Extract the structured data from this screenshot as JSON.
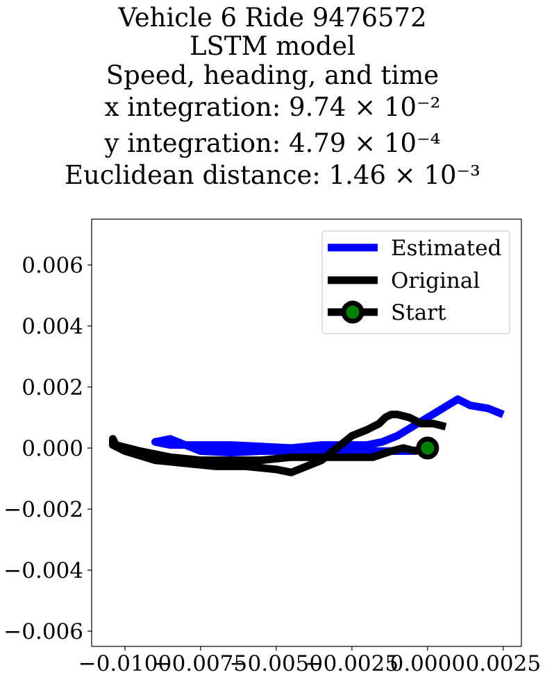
{
  "title_lines": [
    "Vehicle 6 Ride 9476572",
    "LSTM model",
    "Speed, heading, and time",
    "x integration: 9.74 × 10⁻²",
    "y integration: 4.79 × 10⁻⁴",
    "Euclidean distance: 1.46 × 10⁻³"
  ],
  "chart_data": {
    "type": "line",
    "title": "Vehicle 6 Ride 9476572 / LSTM model / Speed, heading, and time / x integration: 9.74 × 10⁻² / y integration: 4.79 × 10⁻⁴ / Euclidean distance: 1.46 × 10⁻³",
    "xlabel": "",
    "ylabel": "",
    "xlim": [
      -0.0111,
      0.0031
    ],
    "ylim": [
      -0.0065,
      0.0075
    ],
    "xticks": [
      "−0.0100",
      "−0.0075",
      "−0.0050",
      "−0.0025",
      "0.0000",
      "0.0025"
    ],
    "xtick_values": [
      -0.01,
      -0.0075,
      -0.005,
      -0.0025,
      0.0,
      0.0025
    ],
    "yticks": [
      "0.006",
      "0.004",
      "0.002",
      "0.000",
      "−0.002",
      "−0.004",
      "−0.006"
    ],
    "ytick_values": [
      0.006,
      0.004,
      0.002,
      0.0,
      -0.002,
      -0.004,
      -0.006
    ],
    "grid": false,
    "legend_position": "top-right",
    "series": [
      {
        "name": "Estimated",
        "color": "#0000ff",
        "points": [
          [
            0.0,
            0.0
          ],
          [
            -0.0005,
            -0.0001
          ],
          [
            -0.001,
            -0.0001
          ],
          [
            -0.0015,
            -0.0001
          ],
          [
            -0.002,
            -0.0001
          ],
          [
            -0.0025,
            -0.0001
          ],
          [
            -0.003,
            -5e-05
          ],
          [
            -0.0035,
            -0.0001
          ],
          [
            -0.0045,
            -0.0001
          ],
          [
            -0.0055,
            -0.0001
          ],
          [
            -0.0065,
            -0.00015
          ],
          [
            -0.0075,
            -0.0001
          ],
          [
            -0.008,
            0.0001
          ],
          [
            -0.0085,
            0.0003
          ],
          [
            -0.009,
            0.0002
          ],
          [
            -0.0085,
            0.0001
          ],
          [
            -0.0075,
            0.0001
          ],
          [
            -0.0065,
            0.0001
          ],
          [
            -0.0055,
            5e-05
          ],
          [
            -0.0045,
            0.0
          ],
          [
            -0.0035,
            0.0001
          ],
          [
            -0.0025,
            0.0001
          ],
          [
            -0.002,
            0.0001
          ],
          [
            -0.0015,
            0.0002
          ],
          [
            -0.001,
            0.0004
          ],
          [
            -0.0005,
            0.0007
          ],
          [
            0.0,
            0.001
          ],
          [
            0.0005,
            0.0013
          ],
          [
            0.001,
            0.0016
          ],
          [
            0.0014,
            0.0014
          ],
          [
            0.002,
            0.0013
          ],
          [
            0.0025,
            0.0011
          ]
        ]
      },
      {
        "name": "Original",
        "color": "#000000",
        "points": [
          [
            0.0006,
            0.0007
          ],
          [
            0.0002,
            0.0008
          ],
          [
            -0.0002,
            0.0008
          ],
          [
            -0.0006,
            0.001
          ],
          [
            -0.001,
            0.0011
          ],
          [
            -0.0012,
            0.0011
          ],
          [
            -0.0014,
            0.001
          ],
          [
            -0.0016,
            0.0008
          ],
          [
            -0.002,
            0.0006
          ],
          [
            -0.0025,
            0.0004
          ],
          [
            -0.003,
            0.0
          ],
          [
            -0.0035,
            -0.0004
          ],
          [
            -0.004,
            -0.0006
          ],
          [
            -0.0045,
            -0.0008
          ],
          [
            -0.005,
            -0.0007
          ],
          [
            -0.006,
            -0.0006
          ],
          [
            -0.007,
            -0.0006
          ],
          [
            -0.008,
            -0.0005
          ],
          [
            -0.009,
            -0.0004
          ],
          [
            -0.01,
            -0.0001
          ],
          [
            -0.0104,
            0.0001
          ],
          [
            -0.0104,
            0.0003
          ],
          [
            -0.0103,
            0.0001
          ],
          [
            -0.0095,
            -0.0001
          ],
          [
            -0.0085,
            -0.0003
          ],
          [
            -0.0075,
            -0.0004
          ],
          [
            -0.0065,
            -0.0004
          ],
          [
            -0.0055,
            -0.0004
          ],
          [
            -0.0045,
            -0.0003
          ],
          [
            -0.0035,
            -0.0003
          ],
          [
            -0.0025,
            -0.0003
          ],
          [
            -0.0018,
            -0.0003
          ],
          [
            -0.0012,
            -0.0001
          ],
          [
            -0.0008,
            0.0
          ],
          [
            -0.0004,
            -0.0001
          ],
          [
            0.0,
            0.0
          ]
        ]
      },
      {
        "name": "Start",
        "color": "#000000",
        "marker_color": "#008000",
        "points": [
          [
            0.0,
            0.0
          ]
        ]
      }
    ]
  }
}
